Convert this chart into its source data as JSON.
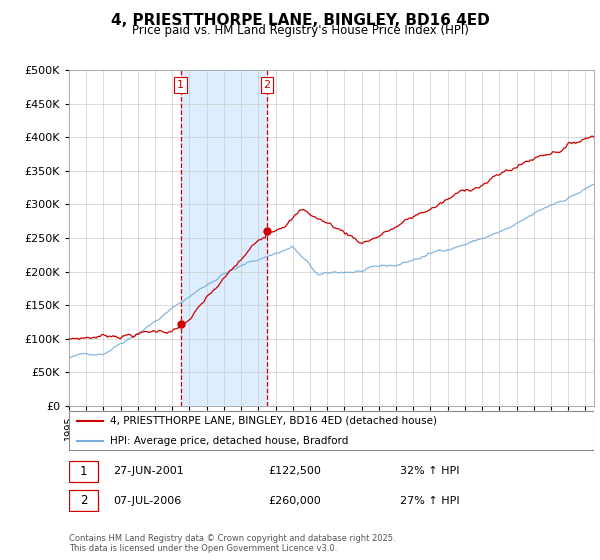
{
  "title": "4, PRIESTTHORPE LANE, BINGLEY, BD16 4ED",
  "subtitle": "Price paid vs. HM Land Registry's House Price Index (HPI)",
  "legend_property": "4, PRIESTTHORPE LANE, BINGLEY, BD16 4ED (detached house)",
  "legend_hpi": "HPI: Average price, detached house, Bradford",
  "sale1_date": "27-JUN-2001",
  "sale1_price": "£122,500",
  "sale1_hpi": "32% ↑ HPI",
  "sale2_date": "07-JUL-2006",
  "sale2_price": "£260,000",
  "sale2_hpi": "27% ↑ HPI",
  "footnote": "Contains HM Land Registry data © Crown copyright and database right 2025.\nThis data is licensed under the Open Government Licence v3.0.",
  "property_color": "#cc0000",
  "hpi_color": "#7aaddc",
  "vline_color": "#cc0000",
  "vline2_color": "#cc0000",
  "bg_band_color": "#ddeeff",
  "sale1_year": 2001.49,
  "sale2_year": 2006.51,
  "sale1_price_val": 122500,
  "sale2_price_val": 260000,
  "ylim": [
    0,
    500000
  ],
  "xlim_start": 1995.0,
  "xlim_end": 2025.5,
  "yticks": [
    0,
    50000,
    100000,
    150000,
    200000,
    250000,
    300000,
    350000,
    400000,
    450000,
    500000
  ]
}
